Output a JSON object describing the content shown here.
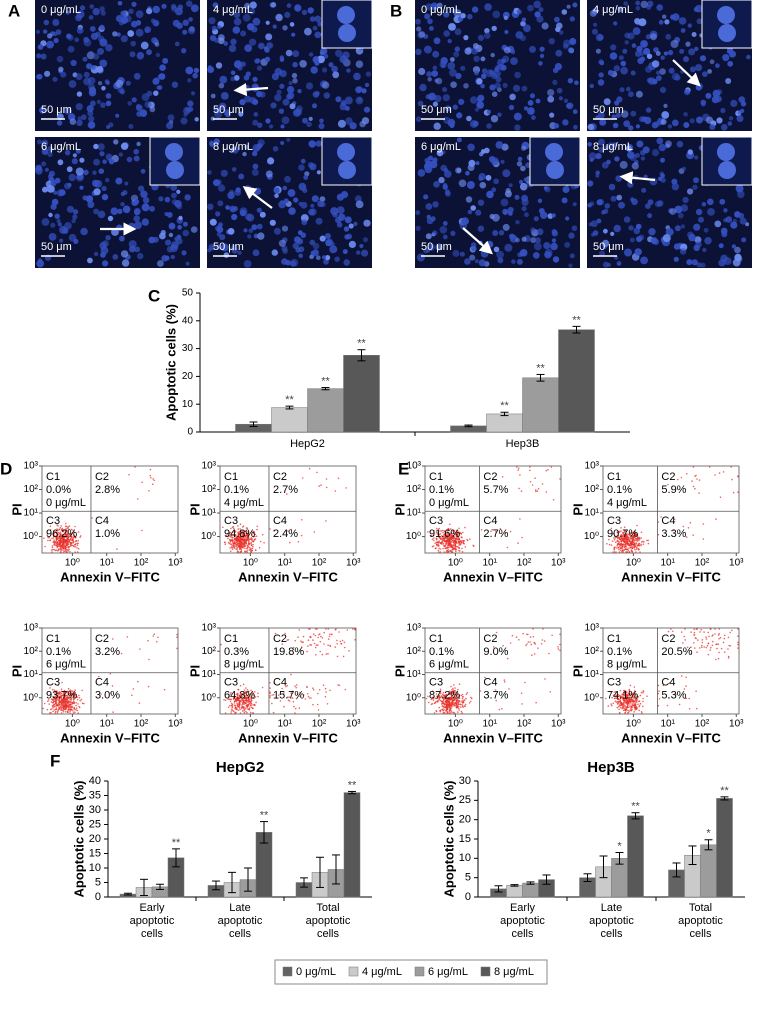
{
  "panels": {
    "A": {
      "label": "A",
      "images": [
        {
          "dose": "0 μg/mL",
          "scale": "50 μm"
        },
        {
          "dose": "4 μg/mL",
          "scale": "50 μm"
        },
        {
          "dose": "6 μg/mL",
          "scale": "50 μm"
        },
        {
          "dose": "8 μg/mL",
          "scale": "50 μm"
        }
      ]
    },
    "B": {
      "label": "B",
      "images": [
        {
          "dose": "0 μg/mL",
          "scale": "50 μm"
        },
        {
          "dose": "4 μg/mL",
          "scale": "50 μm"
        },
        {
          "dose": "6 μg/mL",
          "scale": "50 μm"
        },
        {
          "dose": "8 μg/mL",
          "scale": "50 μm"
        }
      ]
    }
  },
  "chart_data": [
    {
      "type": "bar",
      "panel_label": "C",
      "y_label": "Apoptotic cells (%)",
      "categories": [
        "HepG2",
        "Hep3B"
      ],
      "ylim": [
        0,
        50
      ],
      "yticks": [
        0,
        10,
        20,
        30,
        40,
        50
      ],
      "series": [
        {
          "name": "0 μg/mL",
          "color": "#636363",
          "values": [
            2.8,
            2.2
          ],
          "errors": [
            0.8,
            0.3
          ],
          "significance": [
            null,
            null
          ]
        },
        {
          "name": "4 μg/mL",
          "color": "#cacaca",
          "values": [
            8.8,
            6.5
          ],
          "errors": [
            0.5,
            0.6
          ],
          "significance": [
            "**",
            "**"
          ]
        },
        {
          "name": "6 μg/mL",
          "color": "#9c9c9c",
          "values": [
            15.6,
            19.5
          ],
          "errors": [
            0.4,
            1.2
          ],
          "significance": [
            "**",
            "**"
          ]
        },
        {
          "name": "8 μg/mL",
          "color": "#585858",
          "values": [
            27.6,
            36.8
          ],
          "errors": [
            2.0,
            1.2
          ],
          "significance": [
            "**",
            "**"
          ]
        }
      ]
    },
    {
      "type": "bar",
      "panel_label": "F",
      "title": "HepG2",
      "y_label": "Apoptotic cells (%)",
      "categories": [
        [
          "Early",
          "apoptotic",
          "cells"
        ],
        [
          "Late",
          "apoptotic",
          "cells"
        ],
        [
          "Total",
          "apoptotic",
          "cells"
        ]
      ],
      "ylim": [
        0,
        40
      ],
      "yticks": [
        0,
        5,
        10,
        15,
        20,
        25,
        30,
        35,
        40
      ],
      "series": [
        {
          "name": "0 μg/mL",
          "color": "#636363",
          "values": [
            1.0,
            4.0,
            5.0
          ],
          "errors": [
            0.3,
            1.5,
            1.6
          ],
          "significance": [
            null,
            null,
            null
          ]
        },
        {
          "name": "4 μg/mL",
          "color": "#cacaca",
          "values": [
            3.3,
            5.0,
            8.5
          ],
          "errors": [
            2.8,
            3.5,
            5.2
          ],
          "significance": [
            null,
            null,
            null
          ]
        },
        {
          "name": "6 μg/mL",
          "color": "#9c9c9c",
          "values": [
            3.5,
            6.0,
            9.5
          ],
          "errors": [
            0.9,
            4.0,
            5.0
          ],
          "significance": [
            null,
            null,
            null
          ]
        },
        {
          "name": "8 μg/mL",
          "color": "#585858",
          "values": [
            13.5,
            22.3,
            36.0
          ],
          "errors": [
            3.1,
            3.7,
            0.4
          ],
          "significance": [
            "**",
            "**",
            "**"
          ]
        }
      ]
    },
    {
      "type": "bar",
      "title": "Hep3B",
      "y_label": "Apoptotic cells (%)",
      "categories": [
        [
          "Early",
          "apoptotic",
          "cells"
        ],
        [
          "Late",
          "apoptotic",
          "cells"
        ],
        [
          "Total",
          "apoptotic",
          "cells"
        ]
      ],
      "ylim": [
        0,
        30
      ],
      "yticks": [
        0,
        5,
        10,
        15,
        20,
        25,
        30
      ],
      "series": [
        {
          "name": "0 μg/mL",
          "color": "#636363",
          "values": [
            2.1,
            5.0,
            7.0
          ],
          "errors": [
            0.8,
            1.0,
            1.8
          ],
          "significance": [
            null,
            null,
            null
          ]
        },
        {
          "name": "4 μg/mL",
          "color": "#cacaca",
          "values": [
            3.0,
            7.8,
            10.8
          ],
          "errors": [
            0.2,
            2.8,
            2.4
          ],
          "significance": [
            null,
            null,
            null
          ]
        },
        {
          "name": "6 μg/mL",
          "color": "#9c9c9c",
          "values": [
            3.6,
            10.0,
            13.5
          ],
          "errors": [
            0.3,
            1.5,
            1.3
          ],
          "significance": [
            null,
            "*",
            "*"
          ]
        },
        {
          "name": "8 μg/mL",
          "color": "#585858",
          "values": [
            4.5,
            21.0,
            25.5
          ],
          "errors": [
            1.2,
            0.8,
            0.4
          ],
          "significance": [
            null,
            "**",
            "**"
          ]
        }
      ]
    }
  ],
  "flow": {
    "D": {
      "label": "D",
      "x_label": "Annexin V–FITC",
      "y_label": "PI",
      "log_scale": true,
      "xlim": [
        0.13,
        1200
      ],
      "ylim": [
        0.2,
        1000
      ],
      "xticks": [
        {
          "value": 1,
          "label": "10⁰"
        },
        {
          "value": 10,
          "label": "10¹"
        },
        {
          "value": 100,
          "label": "10²"
        },
        {
          "value": 1000,
          "label": "10³"
        }
      ],
      "yticks": [
        {
          "value": 1,
          "label": "10⁰"
        },
        {
          "value": 10,
          "label": "10¹"
        },
        {
          "value": 100,
          "label": "10²"
        },
        {
          "value": 1000,
          "label": "10³"
        }
      ],
      "plots": [
        {
          "dose": "0 μg/mL",
          "quadrants": [
            {
              "name": "C1",
              "value": "0.0%"
            },
            {
              "name": "C2",
              "value": "2.8%"
            },
            {
              "name": "C3",
              "value": "96.2%"
            },
            {
              "name": "C4",
              "value": "1.0%"
            }
          ]
        },
        {
          "dose": "4 μg/mL",
          "quadrants": [
            {
              "name": "C1",
              "value": "0.1%"
            },
            {
              "name": "C2",
              "value": "2.7%"
            },
            {
              "name": "C3",
              "value": "94.8%"
            },
            {
              "name": "C4",
              "value": "2.4%"
            }
          ]
        },
        {
          "dose": "6 μg/mL",
          "quadrants": [
            {
              "name": "C1",
              "value": "0.1%"
            },
            {
              "name": "C2",
              "value": "3.2%"
            },
            {
              "name": "C3",
              "value": "93.7%"
            },
            {
              "name": "C4",
              "value": "3.0%"
            }
          ]
        },
        {
          "dose": "8 μg/mL",
          "quadrants": [
            {
              "name": "C1",
              "value": "0.3%"
            },
            {
              "name": "C2",
              "value": "19.8%"
            },
            {
              "name": "C3",
              "value": "64.3%"
            },
            {
              "name": "C4",
              "value": "15.7%"
            }
          ]
        }
      ]
    },
    "E": {
      "label": "E",
      "x_label": "Annexin V–FITC",
      "y_label": "PI",
      "log_scale": true,
      "xlim": [
        0.13,
        1200
      ],
      "ylim": [
        0.2,
        1000
      ],
      "xticks": [
        {
          "value": 1,
          "label": "10⁰"
        },
        {
          "value": 10,
          "label": "10¹"
        },
        {
          "value": 100,
          "label": "10²"
        },
        {
          "value": 1000,
          "label": "10³"
        }
      ],
      "yticks": [
        {
          "value": 1,
          "label": "10⁰"
        },
        {
          "value": 10,
          "label": "10¹"
        },
        {
          "value": 100,
          "label": "10²"
        },
        {
          "value": 1000,
          "label": "10³"
        }
      ],
      "plots": [
        {
          "dose": "0 μg/mL",
          "quadrants": [
            {
              "name": "C1",
              "value": "0.1%"
            },
            {
              "name": "C2",
              "value": "5.7%"
            },
            {
              "name": "C3",
              "value": "91.6%"
            },
            {
              "name": "C4",
              "value": "2.7%"
            }
          ]
        },
        {
          "dose": "4 μg/mL",
          "quadrants": [
            {
              "name": "C1",
              "value": "0.1%"
            },
            {
              "name": "C2",
              "value": "5.9%"
            },
            {
              "name": "C3",
              "value": "90.7%"
            },
            {
              "name": "C4",
              "value": "3.3%"
            }
          ]
        },
        {
          "dose": "6 μg/mL",
          "quadrants": [
            {
              "name": "C1",
              "value": "0.1%"
            },
            {
              "name": "C2",
              "value": "9.0%"
            },
            {
              "name": "C3",
              "value": "87.2%"
            },
            {
              "name": "C4",
              "value": "3.7%"
            }
          ]
        },
        {
          "dose": "8 μg/mL",
          "quadrants": [
            {
              "name": "C1",
              "value": "0.1%"
            },
            {
              "name": "C2",
              "value": "20.5%"
            },
            {
              "name": "C3",
              "value": "74.1%"
            },
            {
              "name": "C4",
              "value": "5.3%"
            }
          ]
        }
      ]
    }
  }
}
